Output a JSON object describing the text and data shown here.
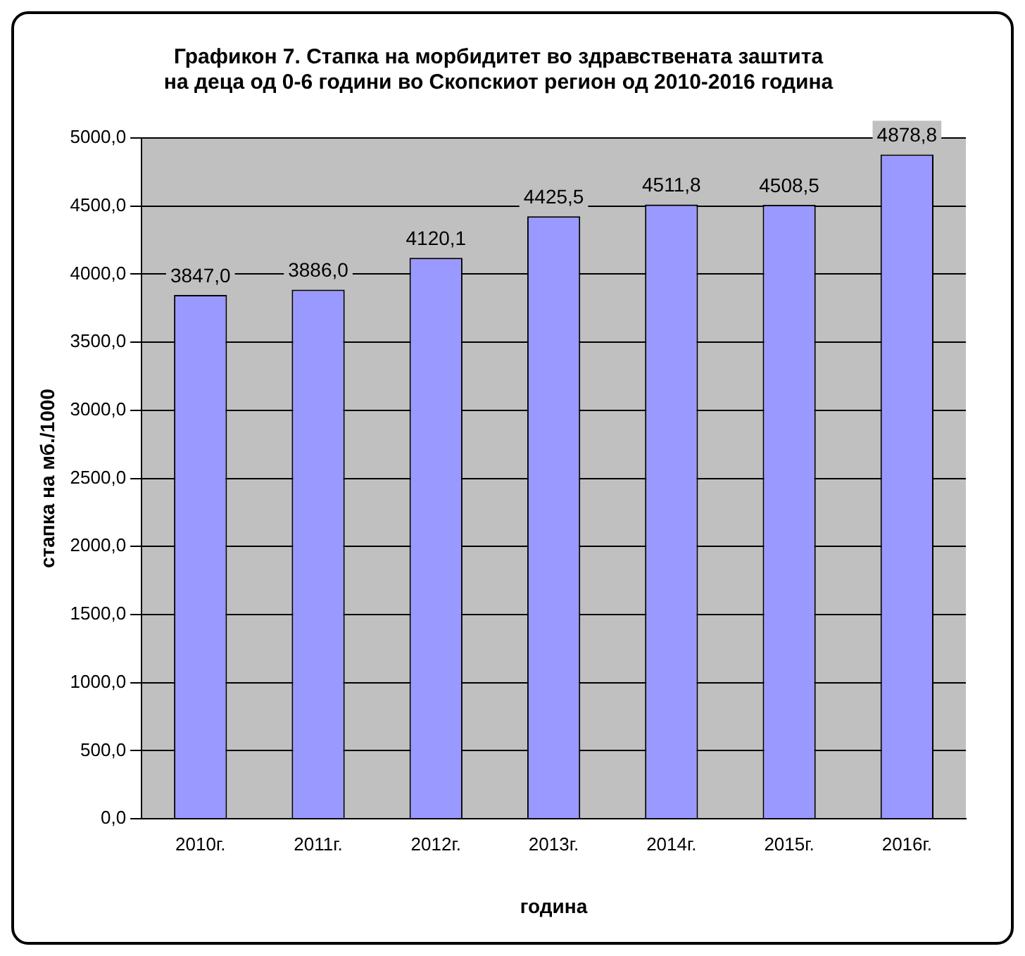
{
  "chart_data": {
    "type": "bar",
    "title": "Графикон 7. Стапка на морбидитет во здравствената заштита\nна деца од 0-6 години во Скопскиот регион од 2010-2016 година",
    "xlabel": "година",
    "ylabel": "стапка на мб./1000",
    "categories": [
      "2010г.",
      "2011г.",
      "2012г.",
      "2013г.",
      "2014г.",
      "2015г.",
      "2016г."
    ],
    "values": [
      3847.0,
      3886.0,
      4120.1,
      4425.5,
      4511.8,
      4508.5,
      4878.8
    ],
    "value_labels": [
      "3847,0",
      "3886,0",
      "4120,1",
      "4425,5",
      "4511,8",
      "4508,5",
      "4878,8"
    ],
    "color": "#9999ff",
    "ylim": [
      0,
      5000
    ],
    "yticks": [
      {
        "value": 0,
        "label": "0,0"
      },
      {
        "value": 500,
        "label": "500,0"
      },
      {
        "value": 1000,
        "label": "1000,0"
      },
      {
        "value": 1500,
        "label": "1500,0"
      },
      {
        "value": 2000,
        "label": "2000,0"
      },
      {
        "value": 2500,
        "label": "2500,0"
      },
      {
        "value": 3000,
        "label": "3000,0"
      },
      {
        "value": 3500,
        "label": "3500,0"
      },
      {
        "value": 4000,
        "label": "4000,0"
      },
      {
        "value": 4500,
        "label": "4500,0"
      },
      {
        "value": 5000,
        "label": "5000,0"
      }
    ],
    "grid": "y",
    "legend": false
  }
}
